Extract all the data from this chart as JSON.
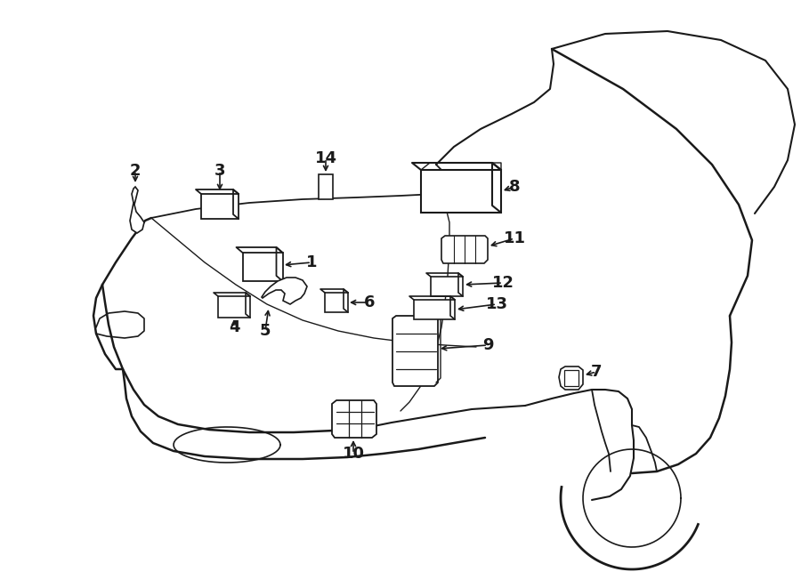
{
  "bg_color": "#ffffff",
  "line_color": "#1a1a1a",
  "text_color": "#1a1a1a",
  "fig_width": 9.0,
  "fig_height": 6.61
}
